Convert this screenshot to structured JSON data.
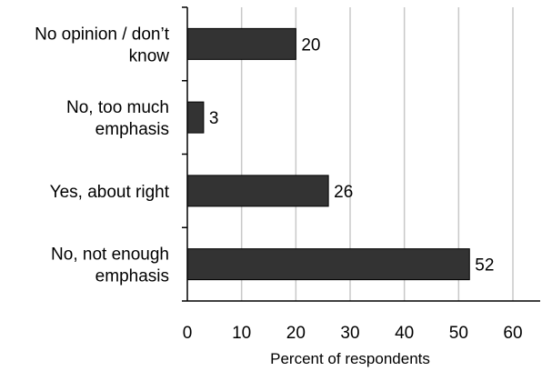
{
  "chart_data": {
    "type": "bar",
    "orientation": "horizontal",
    "categories": [
      [
        "No opinion / don’t",
        "know"
      ],
      [
        "No, too much",
        "emphasis"
      ],
      [
        "Yes, about right"
      ],
      [
        "No, not enough",
        "emphasis"
      ]
    ],
    "values": [
      20,
      3,
      26,
      52
    ],
    "data_labels": [
      "20",
      "3",
      "26",
      "52"
    ],
    "title": "",
    "xlabel": "Percent of respondents",
    "ylabel": "",
    "xlim": [
      0,
      60
    ],
    "xticks": [
      "0",
      "10",
      "20",
      "30",
      "40",
      "50",
      "60"
    ],
    "grid": "vertical",
    "legend": "none",
    "colors": {
      "bar": "#333333",
      "bar_edge": "#000000",
      "grid": "#c8c8c8",
      "axis": "#000000"
    }
  }
}
